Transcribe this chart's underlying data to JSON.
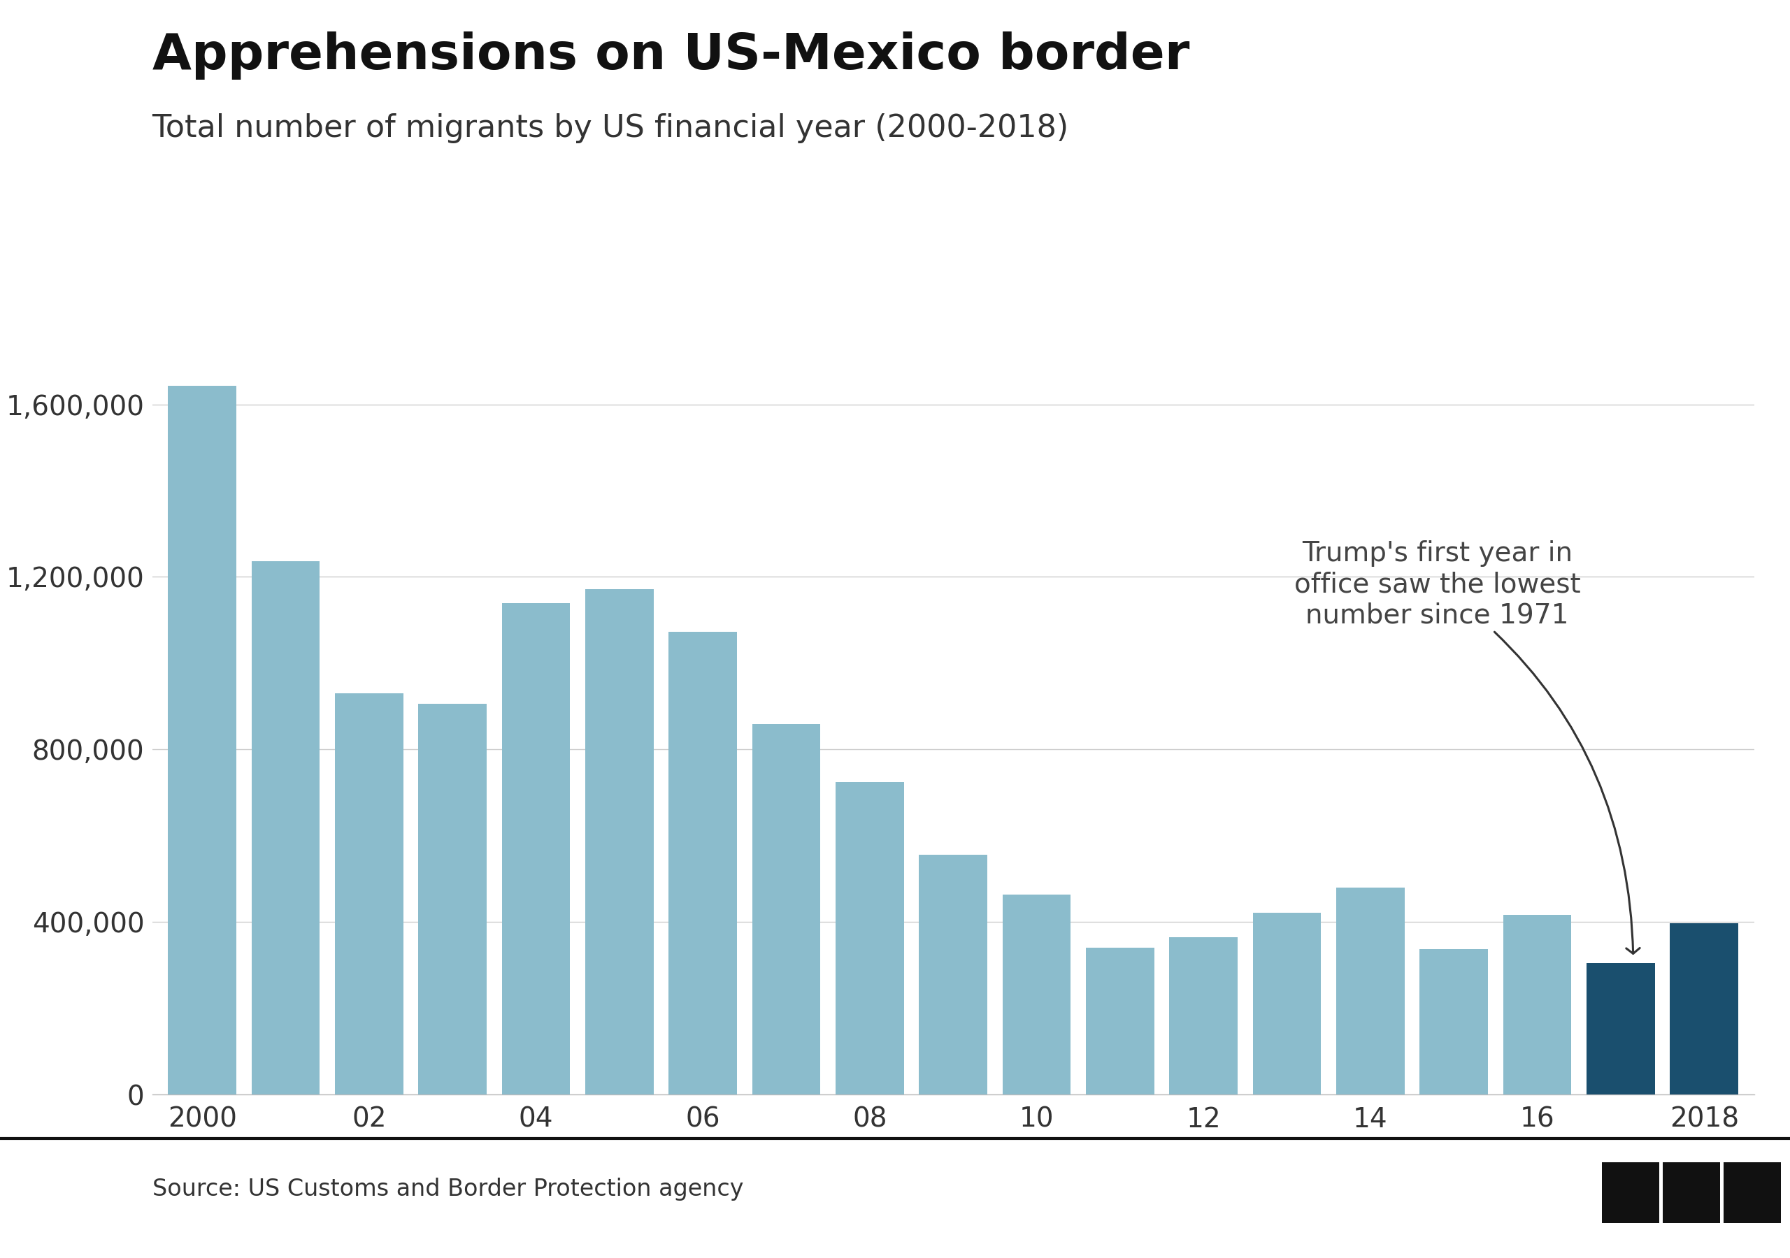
{
  "title": "Apprehensions on US-Mexico border",
  "subtitle": "Total number of migrants by US financial year (2000-2018)",
  "source": "Source: US Customs and Border Protection agency",
  "years": [
    2000,
    2001,
    2002,
    2003,
    2004,
    2005,
    2006,
    2007,
    2008,
    2009,
    2010,
    2011,
    2012,
    2013,
    2014,
    2015,
    2016,
    2017,
    2018
  ],
  "values": [
    1643679,
    1235718,
    929809,
    905065,
    1139282,
    1171396,
    1071972,
    858638,
    723825,
    556041,
    463382,
    340252,
    364768,
    420789,
    479371,
    337117,
    415816,
    303916,
    396579
  ],
  "bar_color_default": "#8bbccc",
  "bar_color_highlight": "#1a4f6e",
  "highlight_years": [
    2017,
    2018
  ],
  "annotation_text": "Trump's first year in\noffice saw the lowest\nnumber since 1971",
  "ytick_labels": [
    "0",
    "400,000",
    "800,000",
    "1,200,000",
    "1,600,000"
  ],
  "ytick_values": [
    0,
    400000,
    800000,
    1200000,
    1600000
  ],
  "xtick_labels": [
    "2000",
    "02",
    "04",
    "06",
    "08",
    "10",
    "12",
    "14",
    "16",
    "2018"
  ],
  "xtick_positions": [
    2000,
    2002,
    2004,
    2006,
    2008,
    2010,
    2012,
    2014,
    2016,
    2018
  ],
  "ylim": [
    0,
    1750000
  ],
  "background_color": "#ffffff",
  "title_fontsize": 52,
  "subtitle_fontsize": 32,
  "source_fontsize": 24,
  "tick_fontsize": 28,
  "annotation_fontsize": 28
}
